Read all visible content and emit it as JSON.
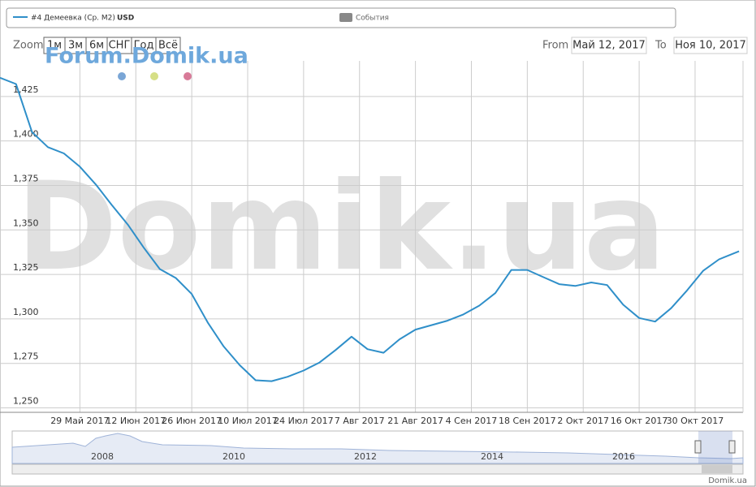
{
  "ui": {
    "legend_series": "#4 Демеевка (Ср. М2)",
    "legend_unit": "USD",
    "legend_events": "События",
    "zoom_label": "Zoom",
    "zoom_buttons": [
      "1м",
      "3м",
      "6м",
      "СНГ",
      "Год",
      "Всё"
    ],
    "from_label": "From",
    "from_value": "Май 12, 2017",
    "to_label": "To",
    "to_value": "Ноя 10, 2017",
    "watermark_small": "Forum.Domik.ua",
    "watermark_big": "Domik.ua",
    "navigator_years": [
      "2008",
      "2010",
      "2012",
      "2014",
      "2016"
    ],
    "credit": "Domik.ua"
  },
  "chart_data": {
    "type": "line",
    "color": "#2f8fc9",
    "grid": true,
    "x": [
      "2017-05-09",
      "2017-05-13",
      "2017-05-17",
      "2017-05-21",
      "2017-05-25",
      "2017-05-29",
      "2017-06-02",
      "2017-06-06",
      "2017-06-10",
      "2017-06-14",
      "2017-06-18",
      "2017-06-22",
      "2017-06-26",
      "2017-06-30",
      "2017-07-04",
      "2017-07-08",
      "2017-07-12",
      "2017-07-16",
      "2017-07-20",
      "2017-07-24",
      "2017-07-28",
      "2017-08-01",
      "2017-08-05",
      "2017-08-09",
      "2017-08-13",
      "2017-08-17",
      "2017-08-21",
      "2017-08-25",
      "2017-08-29",
      "2017-09-02",
      "2017-09-06",
      "2017-09-10",
      "2017-09-14",
      "2017-09-18",
      "2017-09-22",
      "2017-09-26",
      "2017-09-30",
      "2017-10-04",
      "2017-10-08",
      "2017-10-12",
      "2017-10-16",
      "2017-10-20",
      "2017-10-24",
      "2017-10-28",
      "2017-11-01",
      "2017-11-05",
      "2017-11-10"
    ],
    "values": [
      1435.5,
      1432,
      1405,
      1396.5,
      1393,
      1385.5,
      1375.5,
      1364,
      1353,
      1340,
      1328,
      1323,
      1314,
      1298,
      1284.5,
      1274,
      1265.5,
      1265,
      1267.5,
      1271,
      1275.5,
      1282.5,
      1290,
      1283,
      1281,
      1288.5,
      1294,
      1296.5,
      1299,
      1302.5,
      1307.5,
      1314.5,
      1327.5,
      1327.5,
      1323.5,
      1319.5,
      1318.5,
      1320.5,
      1319,
      1308,
      1300.5,
      1298.5,
      1306,
      1316,
      1327,
      1333.5,
      1338
    ],
    "xlim": [
      "2017-05-09",
      "2017-11-11"
    ],
    "xticks": [
      {
        "value": "2017-05-29",
        "label": "29 Май 2017"
      },
      {
        "value": "2017-06-12",
        "label": "12 Июн 2017"
      },
      {
        "value": "2017-06-26",
        "label": "26 Июн 2017"
      },
      {
        "value": "2017-07-10",
        "label": "10 Июл 2017"
      },
      {
        "value": "2017-07-24",
        "label": "24 Июл 2017"
      },
      {
        "value": "2017-08-07",
        "label": "7 Авг 2017"
      },
      {
        "value": "2017-08-21",
        "label": "21 Авг 2017"
      },
      {
        "value": "2017-09-04",
        "label": "4 Сен 2017"
      },
      {
        "value": "2017-09-18",
        "label": "18 Сен 2017"
      },
      {
        "value": "2017-10-02",
        "label": "2 Окт 2017"
      },
      {
        "value": "2017-10-16",
        "label": "16 Окт 2017"
      },
      {
        "value": "2017-10-30",
        "label": "30 Окт 2017"
      }
    ],
    "ylim": [
      1247.5,
      1445
    ],
    "yticks": [
      {
        "value": 1250,
        "label": "1,250"
      },
      {
        "value": 1275,
        "label": "1,275"
      },
      {
        "value": 1300,
        "label": "1,300"
      },
      {
        "value": 1325,
        "label": "1,325"
      },
      {
        "value": 1350,
        "label": "1,350"
      },
      {
        "value": 1375,
        "label": "1,375"
      },
      {
        "value": 1400,
        "label": "1,400"
      },
      {
        "value": 1425,
        "label": "1,425"
      }
    ]
  }
}
